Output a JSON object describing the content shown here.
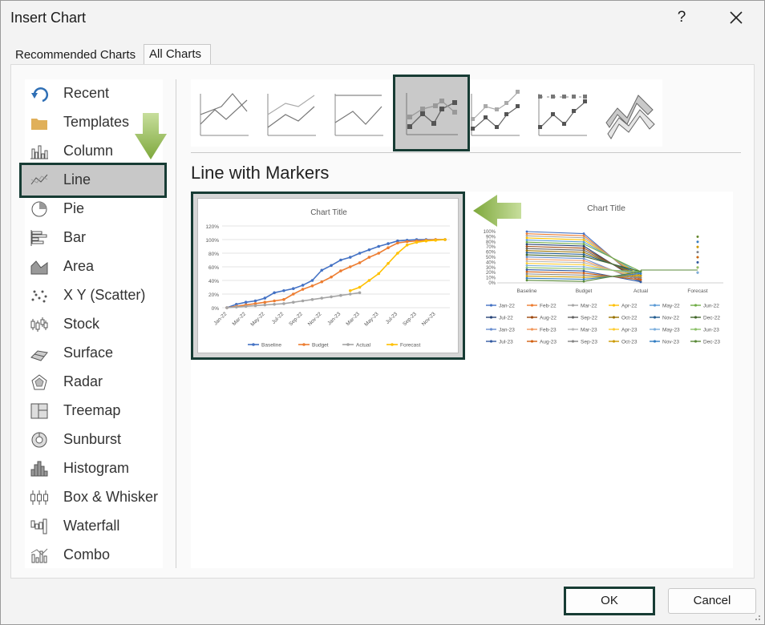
{
  "dialog": {
    "title": "Insert Chart",
    "help": "?"
  },
  "tabs": [
    "Recommended Charts",
    "All Charts"
  ],
  "sidebar": {
    "items": [
      {
        "label": "Recent",
        "icon": "undo-icon"
      },
      {
        "label": "Templates",
        "icon": "folder-icon"
      },
      {
        "label": "Column",
        "icon": "column-chart-icon"
      },
      {
        "label": "Line",
        "icon": "line-chart-icon"
      },
      {
        "label": "Pie",
        "icon": "pie-chart-icon"
      },
      {
        "label": "Bar",
        "icon": "bar-chart-icon"
      },
      {
        "label": "Area",
        "icon": "area-chart-icon"
      },
      {
        "label": "X Y (Scatter)",
        "icon": "scatter-chart-icon"
      },
      {
        "label": "Stock",
        "icon": "stock-chart-icon"
      },
      {
        "label": "Surface",
        "icon": "surface-chart-icon"
      },
      {
        "label": "Radar",
        "icon": "radar-chart-icon"
      },
      {
        "label": "Treemap",
        "icon": "treemap-chart-icon"
      },
      {
        "label": "Sunburst",
        "icon": "sunburst-chart-icon"
      },
      {
        "label": "Histogram",
        "icon": "histogram-chart-icon"
      },
      {
        "label": "Box & Whisker",
        "icon": "box-whisker-chart-icon"
      },
      {
        "label": "Waterfall",
        "icon": "waterfall-chart-icon"
      },
      {
        "label": "Combo",
        "icon": "combo-chart-icon"
      }
    ],
    "selected": "Line"
  },
  "chart_type_heading": "Line with Markers",
  "preview1": {
    "title": "Chart Title",
    "y_ticks": [
      "0%",
      "20%",
      "40%",
      "60%",
      "80%",
      "100%",
      "120%"
    ],
    "x_ticks": [
      "Jan-22",
      "Mar-22",
      "May-22",
      "Jul-22",
      "Sep-22",
      "Nov-22",
      "Jan-23",
      "Mar-23",
      "May-23",
      "Jul-23",
      "Sep-23",
      "Nov-23"
    ],
    "legend": [
      "Baseline",
      "Budget",
      "Actual",
      "Forecast"
    ],
    "colors": [
      "#4472c4",
      "#ed7d31",
      "#a5a5a5",
      "#ffc000"
    ],
    "series": [
      [
        0,
        5,
        8,
        10,
        14,
        22,
        25,
        28,
        33,
        40,
        55,
        62,
        70,
        74,
        80,
        85,
        90,
        94,
        98,
        99,
        100,
        100,
        100,
        100
      ],
      [
        0,
        2,
        4,
        6,
        8,
        10,
        12,
        20,
        27,
        32,
        38,
        45,
        54,
        60,
        66,
        74,
        80,
        88,
        95,
        97,
        98,
        99,
        100,
        100
      ],
      [
        0,
        1,
        2,
        3,
        4,
        5,
        6,
        8,
        10,
        12,
        14,
        16,
        18,
        20,
        22,
        null,
        null,
        null,
        null,
        null,
        null,
        null,
        null,
        null
      ],
      [
        null,
        null,
        null,
        null,
        null,
        null,
        null,
        null,
        null,
        null,
        null,
        null,
        null,
        25,
        30,
        40,
        50,
        65,
        80,
        92,
        96,
        98,
        99,
        100
      ]
    ]
  },
  "preview2": {
    "title": "Chart Title",
    "y_ticks": [
      "0%",
      "10%",
      "20%",
      "30%",
      "40%",
      "50%",
      "60%",
      "70%",
      "80%",
      "90%",
      "100%"
    ],
    "x_ticks": [
      "Baseline",
      "Budget",
      "Actual",
      "Forecast"
    ],
    "legend": [
      "Jan-22",
      "Feb-22",
      "Mar-22",
      "Apr-22",
      "May-22",
      "Jun-22",
      "Jul-22",
      "Aug-22",
      "Sep-22",
      "Oct-22",
      "Nov-22",
      "Dec-22",
      "Jan-23",
      "Feb-23",
      "Mar-23",
      "Apr-23",
      "May-23",
      "Jun-23",
      "Jul-23",
      "Aug-23",
      "Sep-23",
      "Oct-23",
      "Nov-23",
      "Dec-23"
    ],
    "colors": [
      "#4472c4",
      "#ed7d31",
      "#a5a5a5",
      "#ffc000",
      "#5b9bd5",
      "#70ad47",
      "#264478",
      "#9e480e",
      "#636363",
      "#997300",
      "#255e91",
      "#43682b",
      "#698ed0",
      "#f1975a",
      "#b7b7b7",
      "#ffcd33",
      "#7cafdd",
      "#8cc168",
      "#335aa1",
      "#d26012",
      "#848484",
      "#cc9a00",
      "#327dc2",
      "#5a8a39"
    ]
  },
  "buttons": {
    "ok": "OK",
    "cancel": "Cancel"
  }
}
